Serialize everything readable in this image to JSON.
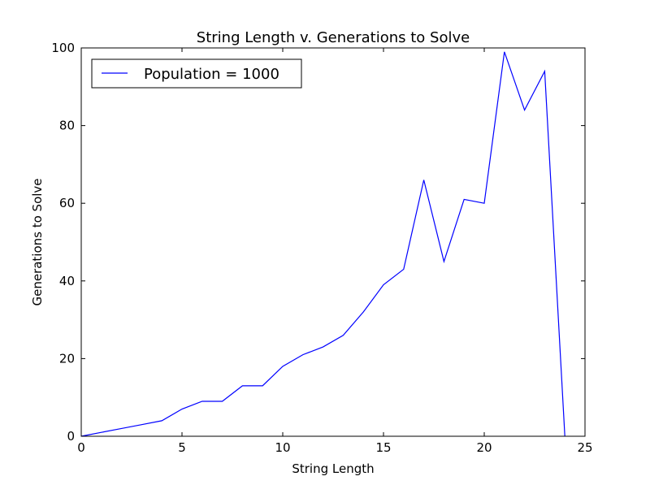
{
  "chart_data": {
    "type": "line",
    "title": "String Length v. Generations to Solve",
    "xlabel": "String Length",
    "ylabel": "Generations to Solve",
    "xlim": [
      0,
      25
    ],
    "ylim": [
      0,
      100
    ],
    "xticks": [
      0,
      5,
      10,
      15,
      20,
      25
    ],
    "yticks": [
      0,
      20,
      40,
      60,
      80,
      100
    ],
    "grid": false,
    "legend_position": "top-left",
    "series": [
      {
        "name": "Population = 1000",
        "color": "#0000ff",
        "x": [
          0,
          1,
          2,
          3,
          4,
          5,
          6,
          7,
          8,
          9,
          10,
          11,
          12,
          13,
          14,
          15,
          16,
          17,
          18,
          19,
          20,
          21,
          22,
          23,
          24
        ],
        "y": [
          0,
          1,
          2,
          3,
          4,
          7,
          9,
          9,
          13,
          13,
          18,
          21,
          23,
          26,
          32,
          39,
          43,
          66,
          45,
          61,
          60,
          99,
          84,
          94,
          0
        ]
      }
    ]
  }
}
